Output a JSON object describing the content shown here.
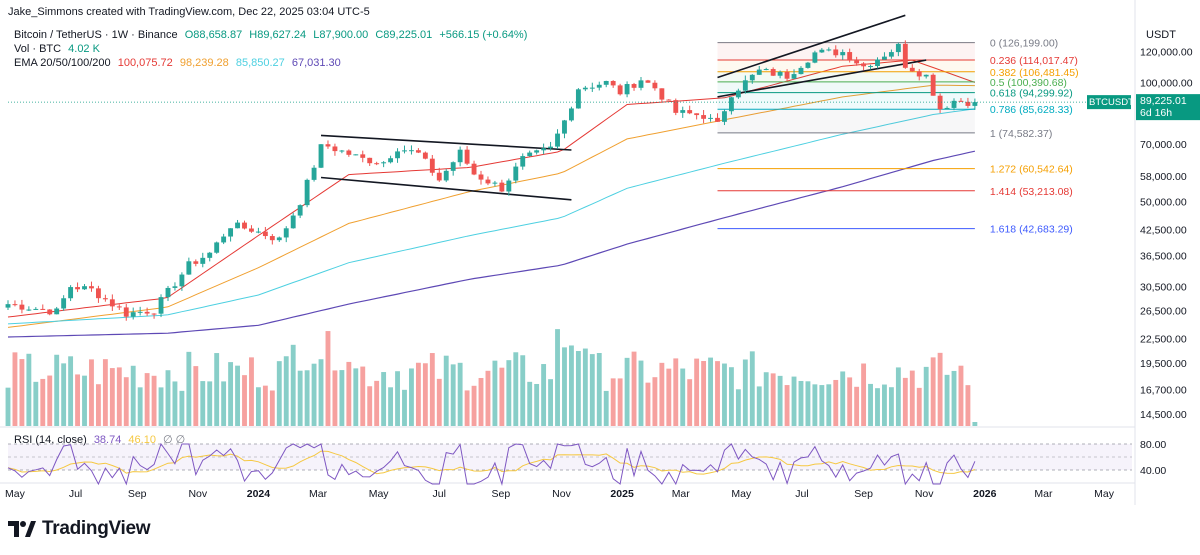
{
  "attribution": "Jake_Simmons created with TradingView.com, Dec 22, 2025 03:04 UTC-5",
  "currency": "USDT",
  "symbol_line": "Bitcoin / TetherUS · 1W · Binance",
  "ohlc": {
    "o": "O88,658.87",
    "h": "H89,627.24",
    "l": "L87,900.00",
    "c": "C89,225.01",
    "change": "+566.15 (+0.64%)"
  },
  "vol": {
    "label": "Vol · BTC",
    "value": "4.02 K"
  },
  "ema": {
    "label": "EMA 20/50/100/200",
    "v20": "100,075.72",
    "v50": "98,239.28",
    "v100": "85,850.27",
    "v200": "67,031.30"
  },
  "rsi": {
    "label": "RSI (14, close)",
    "value": "38.74",
    "ma": "46.10"
  },
  "price_tag": {
    "symbol": "BTCUSDT",
    "price": "89,225.01",
    "countdown": "6d 16h"
  },
  "logo_text": "TradingView",
  "colors": {
    "up": "#26a69a",
    "down": "#ef5350",
    "ema20": "#e53935",
    "ema50": "#f0a030",
    "ema100": "#4dd0e1",
    "ema200": "#5e49b5",
    "rsi": "#7e57c2",
    "rsi_ma": "#f5c842"
  },
  "chart_data": {
    "type": "candlestick",
    "title": "Bitcoin / TetherUS · 1W · Binance",
    "y_scale": "log",
    "ylim": [
      13200,
      150000
    ],
    "y_ticks": [
      "120,000.00",
      "100,000.00",
      "70,000.00",
      "58,000.00",
      "50,000.00",
      "42,500.00",
      "36,500.00",
      "30,500.00",
      "26,500.00",
      "22,500.00",
      "19,500.00",
      "16,700.00",
      "14,500.00"
    ],
    "x_ticks": [
      "May",
      "Jul",
      "Sep",
      "Nov",
      "2024",
      "Mar",
      "May",
      "Jul",
      "Sep",
      "Nov",
      "2025",
      "Mar",
      "May",
      "Jul",
      "Sep",
      "Nov",
      "2026",
      "Mar",
      "May"
    ],
    "rsi_ticks": [
      "80.00",
      "40.00"
    ],
    "price_waypoints": [
      [
        "2023-04-24",
        27500
      ],
      [
        "2023-06-12",
        26300
      ],
      [
        "2023-06-26",
        30500
      ],
      [
        "2023-07-17",
        29900
      ],
      [
        "2023-08-21",
        26000
      ],
      [
        "2023-09-18",
        26600
      ],
      [
        "2023-10-23",
        34500
      ],
      [
        "2023-11-13",
        37000
      ],
      [
        "2023-12-04",
        43500
      ],
      [
        "2023-12-25",
        42500
      ],
      [
        "2024-01-22",
        40000
      ],
      [
        "2024-02-12",
        50000
      ],
      [
        "2024-03-04",
        68500
      ],
      [
        "2024-03-11",
        69000
      ],
      [
        "2024-04-15",
        64000
      ],
      [
        "2024-05-06",
        63000
      ],
      [
        "2024-05-20",
        68500
      ],
      [
        "2024-06-10",
        66000
      ],
      [
        "2024-07-01",
        56700
      ],
      [
        "2024-07-22",
        66500
      ],
      [
        "2024-08-05",
        58700
      ],
      [
        "2024-09-02",
        54000
      ],
      [
        "2024-09-23",
        64000
      ],
      [
        "2024-10-21",
        68000
      ],
      [
        "2024-11-04",
        80000
      ],
      [
        "2024-11-18",
        97000
      ],
      [
        "2024-12-16",
        100000
      ],
      [
        "2024-12-30",
        94500
      ],
      [
        "2025-01-20",
        102000
      ],
      [
        "2025-02-03",
        97000
      ],
      [
        "2025-02-24",
        84000
      ],
      [
        "2025-03-24",
        82500
      ],
      [
        "2025-04-07",
        78000
      ],
      [
        "2025-04-21",
        94000
      ],
      [
        "2025-05-19",
        107000
      ],
      [
        "2025-06-16",
        104000
      ],
      [
        "2025-07-14",
        119000
      ],
      [
        "2025-08-11",
        119500
      ],
      [
        "2025-09-01",
        110000
      ],
      [
        "2025-10-06",
        123500
      ],
      [
        "2025-10-13",
        111000
      ],
      [
        "2025-11-03",
        104000
      ],
      [
        "2025-11-17",
        86000
      ],
      [
        "2025-12-01",
        90000
      ],
      [
        "2025-12-22",
        89225
      ]
    ],
    "ema_waypoints": {
      "EMA 20": [
        [
          "2023-04-24",
          25500
        ],
        [
          "2023-10-01",
          28500
        ],
        [
          "2024-01-01",
          41000
        ],
        [
          "2024-04-01",
          58500
        ],
        [
          "2024-08-01",
          61000
        ],
        [
          "2024-11-01",
          67000
        ],
        [
          "2025-01-06",
          88000
        ],
        [
          "2025-04-14",
          91500
        ],
        [
          "2025-08-11",
          110000
        ],
        [
          "2025-10-20",
          114000
        ],
        [
          "2025-12-22",
          100075
        ]
      ],
      "EMA 50": [
        [
          "2023-04-24",
          24000
        ],
        [
          "2023-10-01",
          27000
        ],
        [
          "2024-01-01",
          34000
        ],
        [
          "2024-04-01",
          44000
        ],
        [
          "2024-08-01",
          53000
        ],
        [
          "2024-11-01",
          59000
        ],
        [
          "2025-01-06",
          72000
        ],
        [
          "2025-04-14",
          80500
        ],
        [
          "2025-08-11",
          92000
        ],
        [
          "2025-11-10",
          98500
        ],
        [
          "2025-12-22",
          98239
        ]
      ],
      "EMA 100": [
        [
          "2023-04-24",
          24500
        ],
        [
          "2023-10-01",
          25800
        ],
        [
          "2024-01-01",
          29000
        ],
        [
          "2024-04-01",
          35000
        ],
        [
          "2024-08-01",
          41000
        ],
        [
          "2024-11-01",
          45500
        ],
        [
          "2025-01-06",
          54000
        ],
        [
          "2025-04-14",
          62500
        ],
        [
          "2025-08-11",
          74000
        ],
        [
          "2025-11-10",
          83000
        ],
        [
          "2025-12-22",
          85850
        ]
      ],
      "EMA 200": [
        [
          "2023-04-24",
          22700
        ],
        [
          "2023-10-01",
          23200
        ],
        [
          "2024-01-01",
          24300
        ],
        [
          "2024-04-01",
          27500
        ],
        [
          "2024-08-01",
          31800
        ],
        [
          "2024-11-01",
          34500
        ],
        [
          "2025-01-06",
          39000
        ],
        [
          "2025-04-14",
          45500
        ],
        [
          "2025-08-11",
          54500
        ],
        [
          "2025-11-10",
          63500
        ],
        [
          "2025-12-22",
          67031
        ]
      ]
    },
    "fibonacci": [
      {
        "level": "0",
        "price": 126199.0,
        "color": "#787b86"
      },
      {
        "level": "0.236",
        "price": 114017.47,
        "color": "#e53935"
      },
      {
        "level": "0.382",
        "price": 106481.45,
        "color": "#f59f00"
      },
      {
        "level": "0.5",
        "price": 100390.68,
        "color": "#4caf50"
      },
      {
        "level": "0.618",
        "price": 94299.92,
        "color": "#089981"
      },
      {
        "level": "0.786",
        "price": 85628.33,
        "color": "#00acc1"
      },
      {
        "level": "1",
        "price": 74582.37,
        "color": "#787b86"
      },
      {
        "level": "1.272",
        "price": 60542.64,
        "color": "#f59f00"
      },
      {
        "level": "1.414",
        "price": 53213.08,
        "color": "#e53935"
      },
      {
        "level": "1.618",
        "price": 42683.29,
        "color": "#3d5afe"
      }
    ],
    "trendlines": [
      {
        "from": [
          "2024-03-04",
          73500
        ],
        "to": [
          "2024-11-11",
          67500
        ]
      },
      {
        "from": [
          "2024-03-04",
          57500
        ],
        "to": [
          "2024-11-11",
          50500
        ]
      },
      {
        "from": [
          "2025-04-07",
          103000
        ],
        "to": [
          "2025-10-13",
          148000
        ]
      },
      {
        "from": [
          "2025-04-07",
          92000
        ],
        "to": [
          "2025-11-03",
          114000
        ]
      }
    ],
    "current_price": 89225.01
  }
}
